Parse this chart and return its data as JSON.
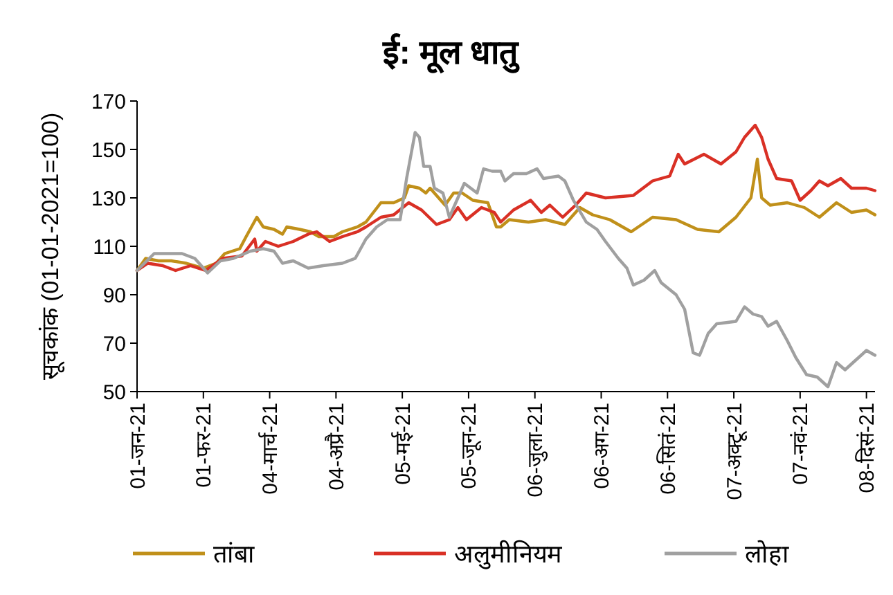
{
  "chart_data": {
    "type": "line",
    "title": "ई: मूल धातु",
    "ylabel": "सूचकांक (01-01-2021=100)",
    "xlim": [
      "2021-01-01",
      "2021-12-12"
    ],
    "ylim": [
      50,
      170
    ],
    "yticks": [
      50,
      70,
      90,
      110,
      130,
      150,
      170
    ],
    "xticks": [
      {
        "value": "2021-01-01",
        "label": "01-जन-21"
      },
      {
        "value": "2021-02-01",
        "label": "01-फर-21"
      },
      {
        "value": "2021-03-04",
        "label": "04-मार्च-21"
      },
      {
        "value": "2021-04-04",
        "label": "04-अप्रै-21"
      },
      {
        "value": "2021-05-05",
        "label": "05-मई-21"
      },
      {
        "value": "2021-06-05",
        "label": "05-जून-21"
      },
      {
        "value": "2021-07-06",
        "label": "06-जुला-21"
      },
      {
        "value": "2021-08-06",
        "label": "06-अग-21"
      },
      {
        "value": "2021-09-06",
        "label": "06-सितं-21"
      },
      {
        "value": "2021-10-07",
        "label": "07-अक्टू-21"
      },
      {
        "value": "2021-11-07",
        "label": "07-नवं-21"
      },
      {
        "value": "2021-12-08",
        "label": "08-दिसं-21"
      }
    ],
    "grid": false,
    "legend": "bottom",
    "marker": "none",
    "line_style": "solid",
    "series": [
      {
        "name": "तांबा",
        "color": "#c0901a",
        "x": [
          "2021-01-01",
          "2021-01-05",
          "2021-01-11",
          "2021-01-17",
          "2021-01-24",
          "2021-02-01",
          "2021-02-07",
          "2021-02-11",
          "2021-02-18",
          "2021-02-21",
          "2021-02-26",
          "2021-03-01",
          "2021-03-06",
          "2021-03-10",
          "2021-03-12",
          "2021-03-18",
          "2021-03-23",
          "2021-03-27",
          "2021-04-03",
          "2021-04-07",
          "2021-04-14",
          "2021-04-18",
          "2021-04-25",
          "2021-05-01",
          "2021-05-06",
          "2021-05-08",
          "2021-05-13",
          "2021-05-16",
          "2021-05-18",
          "2021-05-25",
          "2021-05-29",
          "2021-06-02",
          "2021-06-07",
          "2021-06-14",
          "2021-06-18",
          "2021-06-20",
          "2021-06-24",
          "2021-07-03",
          "2021-07-11",
          "2021-07-20",
          "2021-07-27",
          "2021-08-02",
          "2021-08-10",
          "2021-08-20",
          "2021-08-30",
          "2021-09-10",
          "2021-09-20",
          "2021-09-30",
          "2021-10-08",
          "2021-10-15",
          "2021-10-18",
          "2021-10-20",
          "2021-10-24",
          "2021-11-01",
          "2021-11-09",
          "2021-11-16",
          "2021-11-24",
          "2021-12-01",
          "2021-12-08",
          "2021-12-12"
        ],
        "values": [
          100,
          105,
          104,
          104,
          103,
          101,
          103,
          107,
          109,
          114,
          122,
          118,
          117,
          115,
          118,
          117,
          116,
          114,
          114,
          116,
          118,
          120,
          128,
          128,
          130,
          135,
          134,
          132,
          134,
          127,
          132,
          132,
          129,
          128,
          118,
          118,
          121,
          120,
          121,
          119,
          126,
          123,
          121,
          116,
          122,
          121,
          117,
          116,
          122,
          130,
          146,
          130,
          127,
          128,
          126,
          122,
          128,
          124,
          125,
          123
        ]
      },
      {
        "name": "अलुमीनियम",
        "color": "#d93025",
        "x": [
          "2021-01-01",
          "2021-01-06",
          "2021-01-13",
          "2021-01-19",
          "2021-01-26",
          "2021-02-02",
          "2021-02-10",
          "2021-02-19",
          "2021-02-25",
          "2021-02-26",
          "2021-03-02",
          "2021-03-08",
          "2021-03-15",
          "2021-03-22",
          "2021-03-26",
          "2021-04-01",
          "2021-04-07",
          "2021-04-14",
          "2021-04-18",
          "2021-04-25",
          "2021-05-01",
          "2021-05-08",
          "2021-05-14",
          "2021-05-21",
          "2021-05-27",
          "2021-05-31",
          "2021-06-04",
          "2021-06-11",
          "2021-06-17",
          "2021-06-20",
          "2021-06-26",
          "2021-07-04",
          "2021-07-09",
          "2021-07-13",
          "2021-07-19",
          "2021-07-25",
          "2021-07-30",
          "2021-08-08",
          "2021-08-21",
          "2021-08-30",
          "2021-09-07",
          "2021-09-11",
          "2021-09-14",
          "2021-09-23",
          "2021-10-01",
          "2021-10-08",
          "2021-10-12",
          "2021-10-17",
          "2021-10-20",
          "2021-10-23",
          "2021-10-27",
          "2021-11-03",
          "2021-11-07",
          "2021-11-12",
          "2021-11-16",
          "2021-11-20",
          "2021-11-26",
          "2021-12-01",
          "2021-12-08",
          "2021-12-12"
        ],
        "values": [
          100,
          103,
          102,
          100,
          102,
          100,
          105,
          106,
          113,
          108,
          112,
          110,
          112,
          115,
          116,
          112,
          114,
          116,
          118,
          122,
          123,
          128,
          125,
          119,
          121,
          126,
          121,
          126,
          124,
          120,
          125,
          129,
          124,
          127,
          122,
          127,
          132,
          130,
          131,
          137,
          139,
          148,
          144,
          148,
          144,
          149,
          155,
          160,
          155,
          146,
          138,
          137,
          129,
          133,
          137,
          135,
          138,
          134,
          134,
          133
        ]
      },
      {
        "name": "लोहा",
        "color": "#a0a0a0",
        "x": [
          "2021-01-01",
          "2021-01-09",
          "2021-01-15",
          "2021-01-22",
          "2021-01-28",
          "2021-02-03",
          "2021-02-09",
          "2021-02-15",
          "2021-02-23",
          "2021-03-01",
          "2021-03-06",
          "2021-03-10",
          "2021-03-15",
          "2021-03-22",
          "2021-03-29",
          "2021-04-07",
          "2021-04-13",
          "2021-04-18",
          "2021-04-23",
          "2021-04-28",
          "2021-05-04",
          "2021-05-07",
          "2021-05-11",
          "2021-05-13",
          "2021-05-15",
          "2021-05-18",
          "2021-05-20",
          "2021-05-24",
          "2021-05-27",
          "2021-05-31",
          "2021-06-03",
          "2021-06-09",
          "2021-06-12",
          "2021-06-16",
          "2021-06-20",
          "2021-06-22",
          "2021-06-26",
          "2021-07-02",
          "2021-07-07",
          "2021-07-10",
          "2021-07-17",
          "2021-07-20",
          "2021-07-24",
          "2021-07-30",
          "2021-08-04",
          "2021-08-08",
          "2021-08-14",
          "2021-08-18",
          "2021-08-21",
          "2021-08-26",
          "2021-08-31",
          "2021-09-03",
          "2021-09-10",
          "2021-09-14",
          "2021-09-18",
          "2021-09-21",
          "2021-09-25",
          "2021-09-29",
          "2021-10-08",
          "2021-10-12",
          "2021-10-16",
          "2021-10-20",
          "2021-10-23",
          "2021-10-27",
          "2021-11-01",
          "2021-11-05",
          "2021-11-10",
          "2021-11-15",
          "2021-11-20",
          "2021-11-24",
          "2021-11-28",
          "2021-12-03",
          "2021-12-08",
          "2021-12-12"
        ],
        "values": [
          100,
          107,
          107,
          107,
          105,
          99,
          104,
          105,
          108,
          109,
          108,
          103,
          104,
          101,
          102,
          103,
          105,
          113,
          118,
          121,
          121,
          138,
          157,
          155,
          143,
          143,
          134,
          132,
          122,
          130,
          136,
          132,
          142,
          141,
          141,
          137,
          140,
          140,
          142,
          138,
          139,
          137,
          129,
          120,
          117,
          112,
          105,
          101,
          94,
          96,
          100,
          95,
          90,
          84,
          66,
          65,
          74,
          78,
          79,
          85,
          82,
          81,
          77,
          79,
          71,
          64,
          57,
          56,
          52,
          62,
          59,
          63,
          67,
          65
        ]
      }
    ]
  }
}
